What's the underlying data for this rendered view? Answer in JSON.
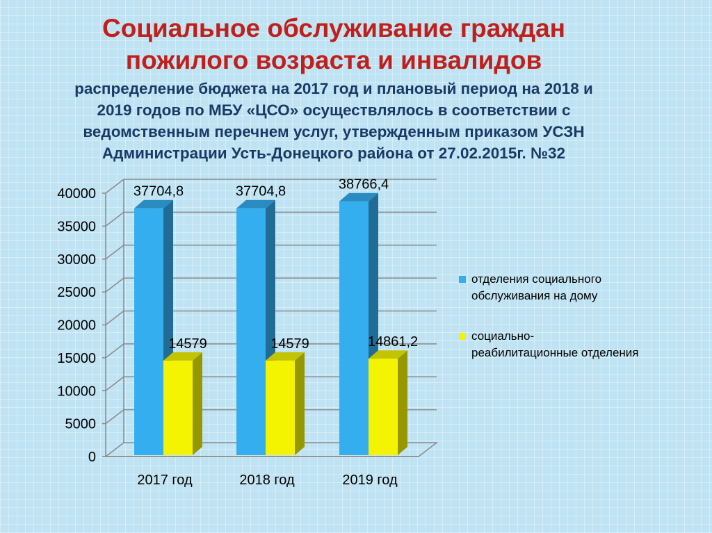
{
  "title_lines": [
    "Социальное обслуживание граждан",
    "пожилого возраста и инвалидов"
  ],
  "subtitle_lines": [
    "распределение бюджета на 2017 год и плановый период на 2018 и",
    "2019 годов  по МБУ «ЦСО»  осуществлялось  в соответствии с",
    "ведомственным перечнем  услуг, утвержденным приказом УСЗН",
    "Администрации Усть-Донецкого района от 27.02.2015г. №32"
  ],
  "colors": {
    "title": "#c0201c",
    "subtitle": "#1a3a66",
    "series_blue": "#35aef0",
    "series_yellow": "#f4f400"
  },
  "chart_data": {
    "type": "bar",
    "categories": [
      "2017 год",
      "2018 год",
      "2019 год"
    ],
    "series": [
      {
        "name": "отделения социального обслуживания на дому",
        "values": [
          37704.8,
          37704.8,
          38766.4
        ],
        "labels": [
          "37704,8",
          "37704,8",
          "38766,4"
        ],
        "color": "#35aef0"
      },
      {
        "name": "социально-реабилитационные отделения",
        "values": [
          14579,
          14579,
          14861.2
        ],
        "labels": [
          "14579",
          "14579",
          "14861,2"
        ],
        "color": "#f4f400"
      }
    ],
    "ylim": [
      0,
      40000
    ],
    "yticks": [
      "0",
      "5000",
      "10000",
      "15000",
      "20000",
      "25000",
      "30000",
      "35000",
      "40000"
    ],
    "grid": true,
    "legend_position": "right",
    "style": "3d-clustered-column"
  }
}
